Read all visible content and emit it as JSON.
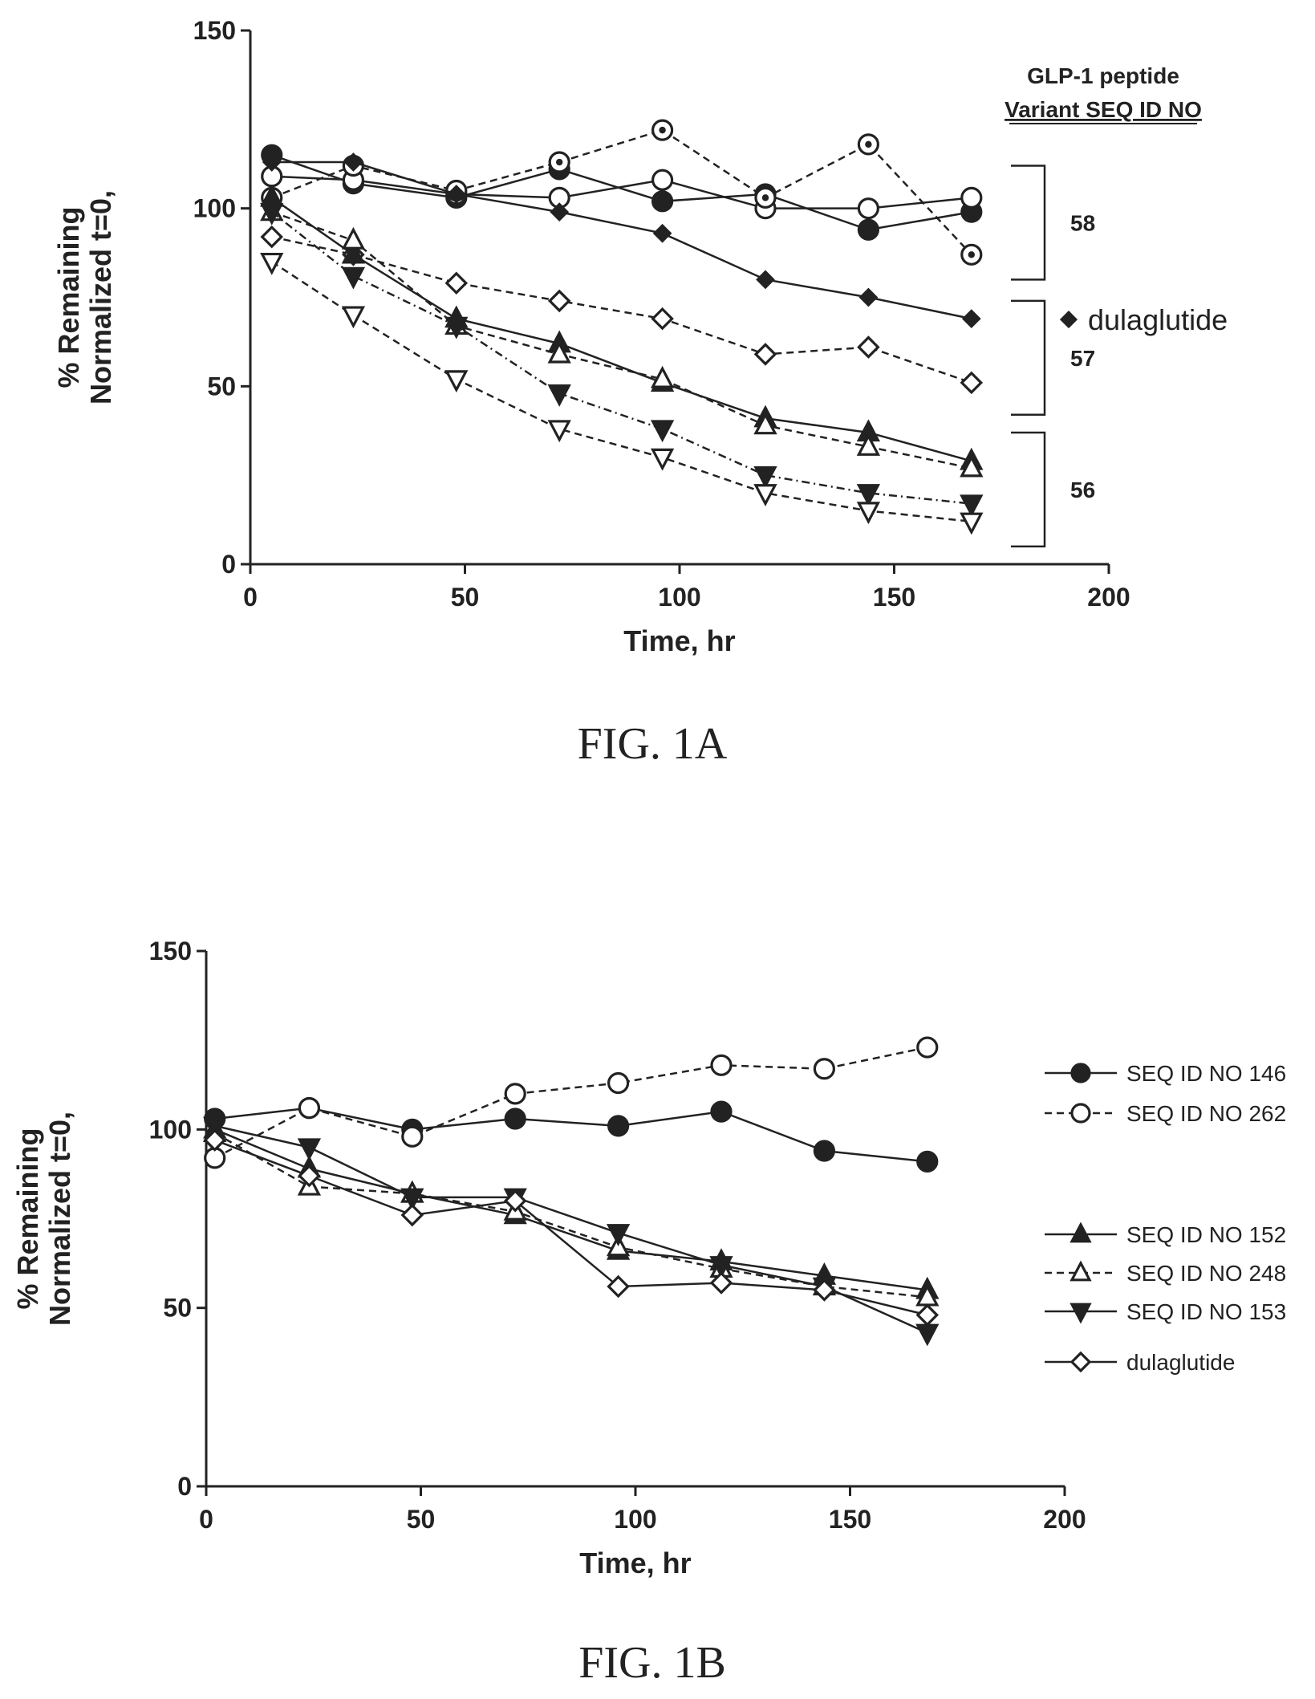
{
  "figures": [
    {
      "caption": "FIG. 1A"
    },
    {
      "caption": "FIG. 1B"
    }
  ],
  "chart_data": [
    {
      "type": "line",
      "xlabel": "Time, hr",
      "ylabel_lines": [
        "% Remaining",
        "Normalized t=0,"
      ],
      "xlim": [
        0,
        200
      ],
      "ylim": [
        0,
        150
      ],
      "xticks": [
        0,
        50,
        100,
        150,
        200
      ],
      "yticks": [
        0,
        50,
        100,
        150
      ],
      "legend_title": "GLP-1 peptide",
      "legend_subtitle": "Variant SEQ ID NO",
      "group_labels": [
        {
          "label": "58",
          "y_range": [
            80,
            112
          ]
        },
        {
          "label": "57",
          "y_range": [
            42,
            74
          ]
        },
        {
          "label": "56",
          "y_range": [
            5,
            37
          ]
        }
      ],
      "annotations": [
        {
          "text": "dulaglutide",
          "marker": "diamond-filled"
        }
      ],
      "series": [
        {
          "group": "58",
          "marker": "circle-filled",
          "dash": "solid",
          "x": [
            5,
            24,
            48,
            72,
            96,
            120,
            144,
            168
          ],
          "y": [
            115,
            107,
            103,
            111,
            102,
            104,
            94,
            99
          ]
        },
        {
          "group": "58",
          "marker": "circle-open",
          "dash": "solid",
          "x": [
            5,
            24,
            48,
            72,
            96,
            120,
            144,
            168
          ],
          "y": [
            109,
            108,
            104,
            103,
            108,
            100,
            100,
            103
          ]
        },
        {
          "group": "58",
          "marker": "circle-dot",
          "dash": "dash",
          "x": [
            5,
            24,
            48,
            72,
            96,
            120,
            144,
            168
          ],
          "y": [
            103,
            112,
            105,
            113,
            122,
            103,
            118,
            87
          ]
        },
        {
          "name": "dulaglutide",
          "group": "57",
          "marker": "diamond-filled",
          "dash": "solid",
          "x": [
            5,
            24,
            48,
            72,
            96,
            120,
            144,
            168
          ],
          "y": [
            113,
            113,
            104,
            99,
            93,
            80,
            75,
            69
          ]
        },
        {
          "group": "57",
          "marker": "diamond-open",
          "dash": "dash",
          "x": [
            5,
            24,
            48,
            72,
            96,
            120,
            144,
            168
          ],
          "y": [
            92,
            87,
            79,
            74,
            69,
            59,
            61,
            51
          ]
        },
        {
          "group": "56",
          "marker": "triangle-up-filled",
          "dash": "solid",
          "x": [
            5,
            24,
            48,
            72,
            96,
            120,
            144,
            168
          ],
          "y": [
            103,
            87,
            69,
            62,
            51,
            41,
            37,
            29
          ]
        },
        {
          "group": "56",
          "marker": "triangle-up-open",
          "dash": "dash",
          "x": [
            5,
            24,
            48,
            72,
            96,
            120,
            144,
            168
          ],
          "y": [
            99,
            91,
            67,
            59,
            52,
            39,
            33,
            27
          ]
        },
        {
          "group": "56",
          "marker": "triangle-down-filled",
          "dash": "dashdot",
          "x": [
            5,
            24,
            48,
            72,
            96,
            120,
            144,
            168
          ],
          "y": [
            99,
            81,
            67,
            48,
            38,
            25,
            20,
            17
          ]
        },
        {
          "group": "56",
          "marker": "triangle-down-open",
          "dash": "dash",
          "x": [
            5,
            24,
            48,
            72,
            96,
            120,
            144,
            168
          ],
          "y": [
            85,
            70,
            52,
            38,
            30,
            20,
            15,
            12
          ]
        }
      ]
    },
    {
      "type": "line",
      "xlabel": "Time, hr",
      "ylabel_lines": [
        "% Remaining",
        "Normalized t=0,"
      ],
      "xlim": [
        0,
        200
      ],
      "ylim": [
        0,
        150
      ],
      "xticks": [
        0,
        50,
        100,
        150,
        200
      ],
      "yticks": [
        0,
        50,
        100,
        150
      ],
      "legend_position": "right",
      "series": [
        {
          "name": "SEQ ID NO 146",
          "marker": "circle-filled",
          "dash": "solid",
          "x": [
            2,
            24,
            48,
            72,
            96,
            120,
            144,
            168
          ],
          "y": [
            103,
            106,
            100,
            103,
            101,
            105,
            94,
            91
          ]
        },
        {
          "name": "SEQ ID NO 262",
          "marker": "circle-open",
          "dash": "dash",
          "x": [
            2,
            24,
            48,
            72,
            96,
            120,
            144,
            168
          ],
          "y": [
            92,
            106,
            98,
            110,
            113,
            118,
            117,
            123
          ]
        },
        {
          "name": "SEQ ID NO 152",
          "marker": "triangle-up-filled",
          "dash": "solid",
          "x": [
            2,
            24,
            48,
            72,
            96,
            120,
            144,
            168
          ],
          "y": [
            100,
            89,
            82,
            76,
            66,
            63,
            59,
            55
          ]
        },
        {
          "name": "SEQ ID NO 248",
          "marker": "triangle-up-open",
          "dash": "dash",
          "x": [
            2,
            24,
            48,
            72,
            96,
            120,
            144,
            168
          ],
          "y": [
            99,
            84,
            82,
            77,
            67,
            61,
            56,
            53
          ]
        },
        {
          "name": "SEQ ID NO 153",
          "marker": "triangle-down-filled",
          "dash": "solid",
          "x": [
            2,
            24,
            48,
            72,
            96,
            120,
            144,
            168
          ],
          "y": [
            101,
            95,
            81,
            81,
            71,
            62,
            56,
            43
          ]
        },
        {
          "name": "dulaglutide",
          "marker": "diamond-open",
          "dash": "solid",
          "x": [
            2,
            24,
            48,
            72,
            96,
            120,
            144,
            168
          ],
          "y": [
            97,
            87,
            76,
            80,
            56,
            57,
            55,
            48
          ]
        }
      ]
    }
  ]
}
